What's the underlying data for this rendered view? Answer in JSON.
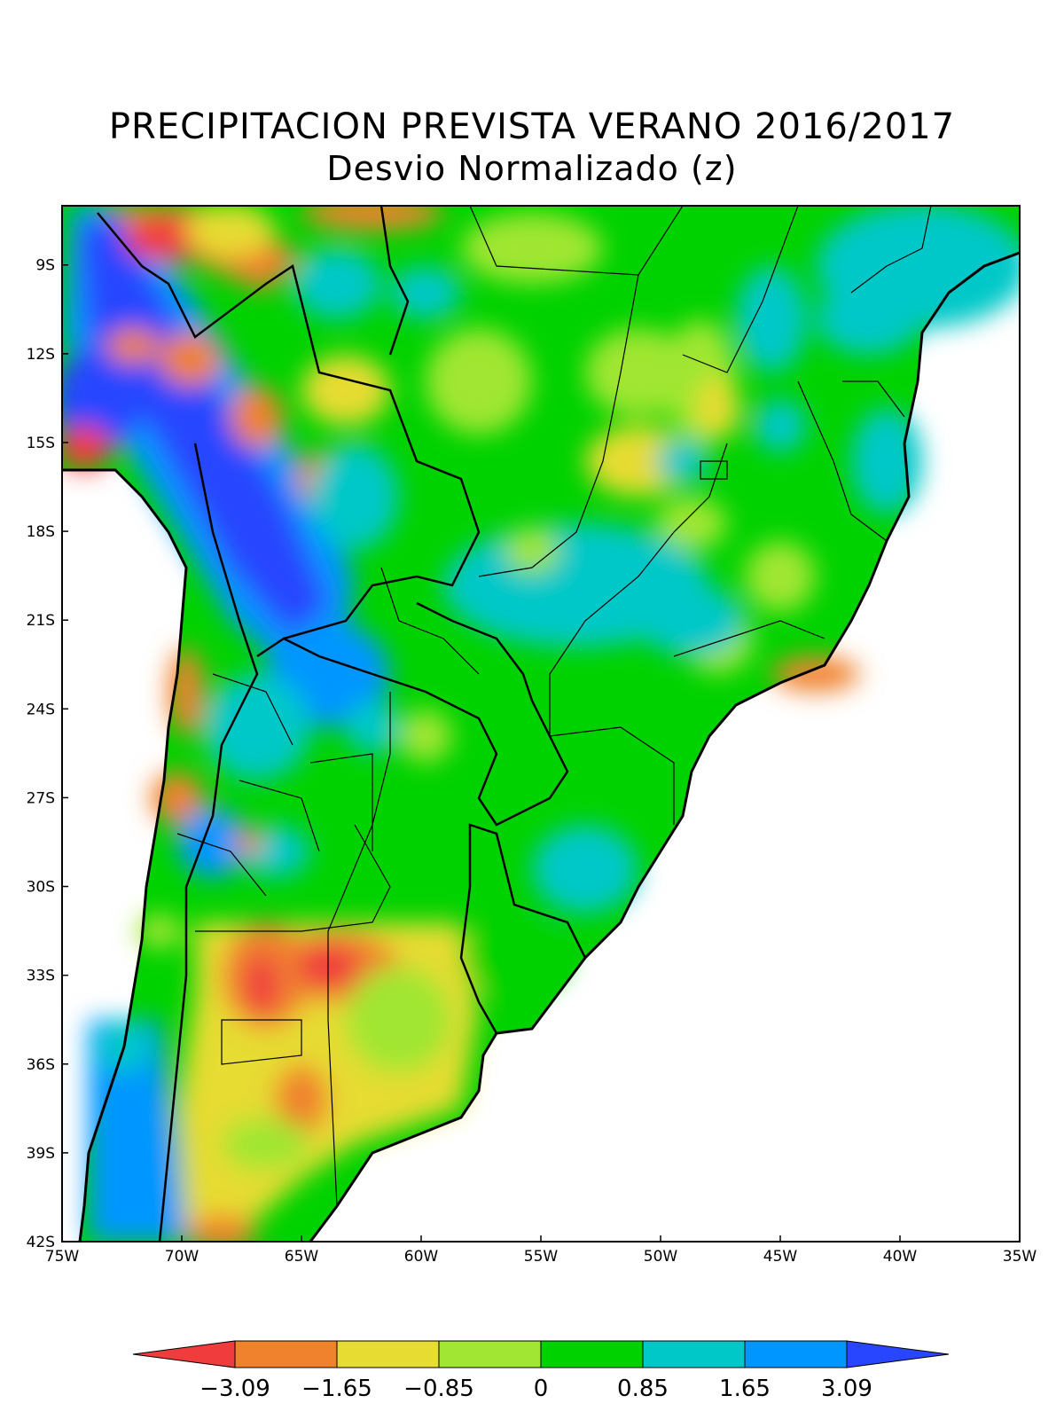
{
  "title": "PRECIPITACION PREVISTA VERANO 2016/2017",
  "subtitle": "Desvio Normalizado (z)",
  "axes": {
    "lon_ticks": [
      "75W",
      "70W",
      "65W",
      "60W",
      "55W",
      "50W",
      "45W",
      "40W",
      "35W"
    ],
    "lat_ticks": [
      "9S",
      "12S",
      "15S",
      "18S",
      "21S",
      "24S",
      "27S",
      "30S",
      "33S",
      "36S",
      "39S",
      "42S"
    ],
    "lon_range": [
      -75,
      -35
    ],
    "lat_range": [
      -42,
      -7
    ]
  },
  "colorbar": {
    "labels": [
      "−3.09",
      "−1.65",
      "−0.85",
      "0",
      "0.85",
      "1.65",
      "3.09"
    ],
    "colors": [
      "#f03c3c",
      "#f0822d",
      "#e6dc32",
      "#a0e632",
      "#00d200",
      "#00c8c8",
      "#0096ff",
      "#2846ff"
    ]
  }
}
